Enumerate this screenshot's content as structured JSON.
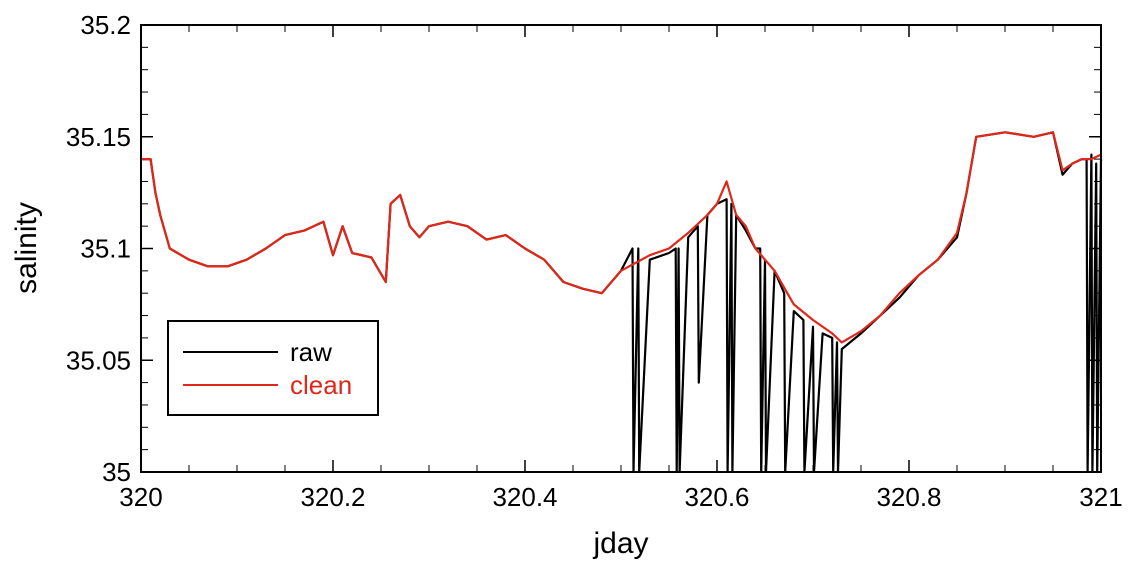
{
  "chart_data": {
    "type": "line",
    "title": "",
    "xlabel": "jday",
    "ylabel": "salinity",
    "xlim": [
      320,
      321
    ],
    "ylim": [
      35,
      35.2
    ],
    "x_ticks": [
      "320",
      "320.2",
      "320.4",
      "320.6",
      "320.8",
      "321"
    ],
    "y_ticks": [
      "35",
      "35.05",
      "35.1",
      "35.15",
      "35.2"
    ],
    "grid": false,
    "legend_position": "lower-left",
    "series": [
      {
        "name": "raw",
        "color": "#000000",
        "x": [
          320.0,
          320.01,
          320.015,
          320.02,
          320.03,
          320.05,
          320.07,
          320.09,
          320.11,
          320.13,
          320.15,
          320.17,
          320.19,
          320.2,
          320.21,
          320.22,
          320.24,
          320.255,
          320.26,
          320.27,
          320.28,
          320.29,
          320.3,
          320.32,
          320.34,
          320.36,
          320.38,
          320.4,
          320.42,
          320.44,
          320.46,
          320.48,
          320.5,
          320.512,
          320.513,
          320.518,
          320.519,
          320.53,
          320.55,
          320.557,
          320.558,
          320.56,
          320.561,
          320.57,
          320.58,
          320.581,
          320.59,
          320.6,
          320.61,
          320.611,
          320.615,
          320.616,
          320.62,
          320.63,
          320.64,
          320.645,
          320.646,
          320.65,
          320.651,
          320.66,
          320.67,
          320.671,
          320.68,
          320.69,
          320.691,
          320.7,
          320.701,
          320.71,
          320.72,
          320.721,
          320.725,
          320.726,
          320.73,
          320.75,
          320.77,
          320.79,
          320.81,
          320.83,
          320.85,
          320.86,
          320.87,
          320.9,
          320.93,
          320.95,
          320.96,
          320.97,
          320.98,
          320.985,
          320.986,
          320.99,
          320.991,
          320.995,
          320.996,
          321.0
        ],
        "y": [
          35.14,
          35.14,
          35.125,
          35.115,
          35.1,
          35.095,
          35.092,
          35.092,
          35.095,
          35.1,
          35.106,
          35.108,
          35.112,
          35.097,
          35.11,
          35.098,
          35.096,
          35.085,
          35.12,
          35.124,
          35.11,
          35.105,
          35.11,
          35.112,
          35.11,
          35.104,
          35.106,
          35.1,
          35.095,
          35.085,
          35.082,
          35.08,
          35.09,
          35.1,
          35.0,
          35.1,
          35.0,
          35.095,
          35.098,
          35.1,
          35.0,
          35.1,
          35.0,
          35.105,
          35.11,
          35.04,
          35.115,
          35.12,
          35.122,
          35.0,
          35.12,
          35.0,
          35.115,
          35.108,
          35.1,
          35.1,
          35.0,
          35.095,
          35.0,
          35.09,
          35.08,
          35.0,
          35.072,
          35.068,
          35.0,
          35.065,
          35.0,
          35.062,
          35.06,
          35.0,
          35.058,
          35.0,
          35.055,
          35.062,
          35.07,
          35.078,
          35.088,
          35.095,
          35.105,
          35.125,
          35.15,
          35.152,
          35.15,
          35.152,
          35.133,
          35.138,
          35.14,
          35.14,
          35.0,
          35.142,
          35.0,
          35.138,
          35.0,
          35.14
        ]
      },
      {
        "name": "clean",
        "color": "#e0281a",
        "x": [
          320.0,
          320.01,
          320.015,
          320.02,
          320.03,
          320.05,
          320.07,
          320.09,
          320.11,
          320.13,
          320.15,
          320.17,
          320.19,
          320.2,
          320.21,
          320.22,
          320.24,
          320.255,
          320.26,
          320.27,
          320.28,
          320.29,
          320.3,
          320.32,
          320.34,
          320.36,
          320.38,
          320.4,
          320.42,
          320.44,
          320.46,
          320.48,
          320.5,
          320.53,
          320.55,
          320.57,
          320.59,
          320.6,
          320.61,
          320.62,
          320.63,
          320.64,
          320.66,
          320.68,
          320.7,
          320.72,
          320.73,
          320.75,
          320.77,
          320.79,
          320.81,
          320.83,
          320.85,
          320.86,
          320.87,
          320.9,
          320.93,
          320.95,
          320.96,
          320.97,
          320.98,
          320.99,
          321.0
        ],
        "y": [
          35.14,
          35.14,
          35.125,
          35.115,
          35.1,
          35.095,
          35.092,
          35.092,
          35.095,
          35.1,
          35.106,
          35.108,
          35.112,
          35.097,
          35.11,
          35.098,
          35.096,
          35.085,
          35.12,
          35.124,
          35.11,
          35.105,
          35.11,
          35.112,
          35.11,
          35.104,
          35.106,
          35.1,
          35.095,
          35.085,
          35.082,
          35.08,
          35.09,
          35.097,
          35.1,
          35.107,
          35.115,
          35.12,
          35.13,
          35.115,
          35.11,
          35.1,
          35.09,
          35.075,
          35.068,
          35.062,
          35.058,
          35.063,
          35.07,
          35.08,
          35.088,
          35.095,
          35.107,
          35.125,
          35.15,
          35.152,
          35.15,
          35.152,
          35.135,
          35.138,
          35.14,
          35.14,
          35.142
        ]
      }
    ]
  }
}
